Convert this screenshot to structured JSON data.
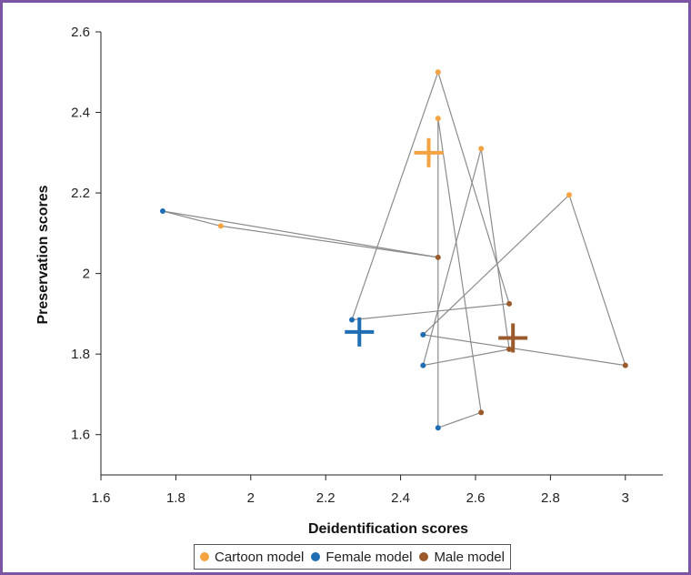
{
  "chart_data": {
    "type": "scatter",
    "xlabel": "Deidentification scores",
    "ylabel": "Preservation scores",
    "xlim": [
      1.6,
      3.1
    ],
    "ylim": [
      1.5,
      2.6
    ],
    "xticks": [
      "1.6",
      "1.8",
      "2",
      "2.2",
      "2.4",
      "2.6",
      "2.8",
      "3"
    ],
    "yticks": [
      "1.6",
      "1.8",
      "2",
      "2.2",
      "2.4",
      "2.6"
    ],
    "series": [
      {
        "name": "Cartoon model",
        "color": "#f4a340",
        "points": [
          [
            2.5,
            2.5
          ],
          [
            2.5,
            2.385
          ],
          [
            2.615,
            2.31
          ],
          [
            2.85,
            2.195
          ],
          [
            1.92,
            2.118
          ]
        ],
        "mean": [
          2.475,
          2.3
        ]
      },
      {
        "name": "Female model",
        "color": "#1f6db3",
        "points": [
          [
            1.765,
            2.155
          ],
          [
            2.27,
            1.885
          ],
          [
            2.46,
            1.848
          ],
          [
            2.46,
            1.772
          ],
          [
            2.5,
            1.617
          ]
        ],
        "mean": [
          2.29,
          1.855
        ]
      },
      {
        "name": "Male model",
        "color": "#9a5a2c",
        "points": [
          [
            2.5,
            2.04
          ],
          [
            2.69,
            1.925
          ],
          [
            2.69,
            1.812
          ],
          [
            3.0,
            1.772
          ],
          [
            2.615,
            1.655
          ]
        ],
        "mean": [
          2.7,
          1.84
        ]
      }
    ],
    "connections": [
      [
        [
          1.765,
          2.155
        ],
        [
          1.92,
          2.118
        ],
        [
          2.5,
          2.04
        ]
      ],
      [
        [
          2.5,
          2.04
        ],
        [
          1.765,
          2.155
        ]
      ],
      [
        [
          2.27,
          1.885
        ],
        [
          2.5,
          2.5
        ],
        [
          2.69,
          1.925
        ],
        [
          2.27,
          1.885
        ]
      ],
      [
        [
          2.5,
          2.385
        ],
        [
          2.615,
          1.655
        ],
        [
          2.5,
          1.617
        ],
        [
          2.5,
          2.385
        ]
      ],
      [
        [
          2.615,
          2.31
        ],
        [
          2.69,
          1.812
        ],
        [
          2.46,
          1.772
        ],
        [
          2.615,
          2.31
        ]
      ],
      [
        [
          2.85,
          2.195
        ],
        [
          2.46,
          1.848
        ],
        [
          3.0,
          1.772
        ],
        [
          2.85,
          2.195
        ]
      ]
    ]
  },
  "legend": {
    "items": [
      {
        "label": "Cartoon model",
        "color": "#f4a340"
      },
      {
        "label": "Female model",
        "color": "#1f6db3"
      },
      {
        "label": "Male model",
        "color": "#9a5a2c"
      }
    ]
  }
}
